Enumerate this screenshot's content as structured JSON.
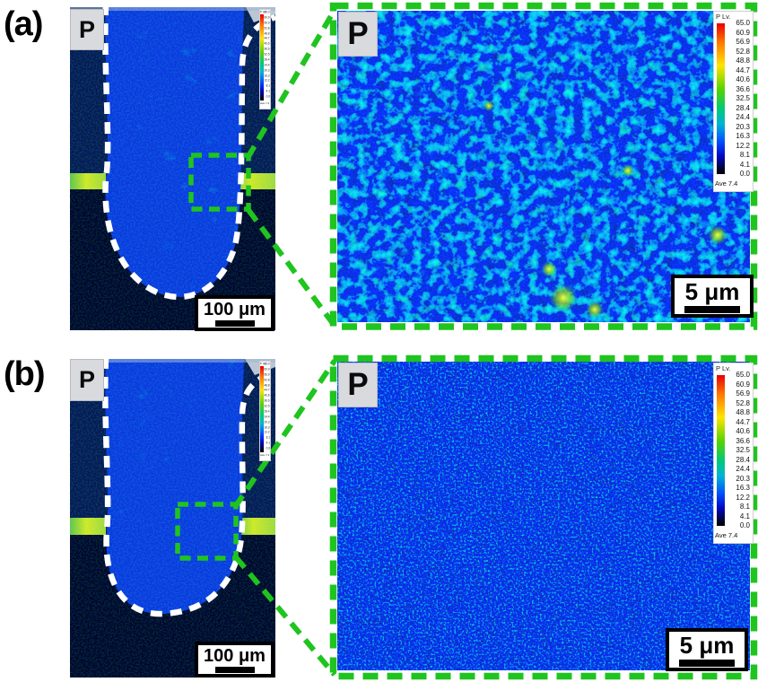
{
  "figure": {
    "panels": [
      {
        "id": "a",
        "label": "(a)",
        "element_label": "P",
        "overview": {
          "scale_bar_label": "100 μm"
        },
        "zoom_view": {
          "element_label": "P",
          "scale_bar_label": "5 μm"
        }
      },
      {
        "id": "b",
        "label": "(b)",
        "element_label": "P",
        "overview": {
          "scale_bar_label": "100 μm"
        },
        "zoom_view": {
          "element_label": "P",
          "scale_bar_label": "5 μm"
        }
      }
    ],
    "colorbar": {
      "title": "P Lv.",
      "values": [
        "65.0",
        "60.9",
        "56.9",
        "52.8",
        "48.8",
        "44.7",
        "40.6",
        "36.6",
        "32.5",
        "28.4",
        "24.4",
        "20.3",
        "16.3",
        "12.2",
        "8.1",
        "4.1",
        "0.0"
      ],
      "average_label": "Ave 7.4"
    },
    "colors": {
      "annotation_green": "#1fc41f",
      "contour_white": "#ffffff",
      "interface_band_yellow": "#cde800",
      "map_blue": "#0c38d8",
      "background_navy": "#061433"
    }
  }
}
